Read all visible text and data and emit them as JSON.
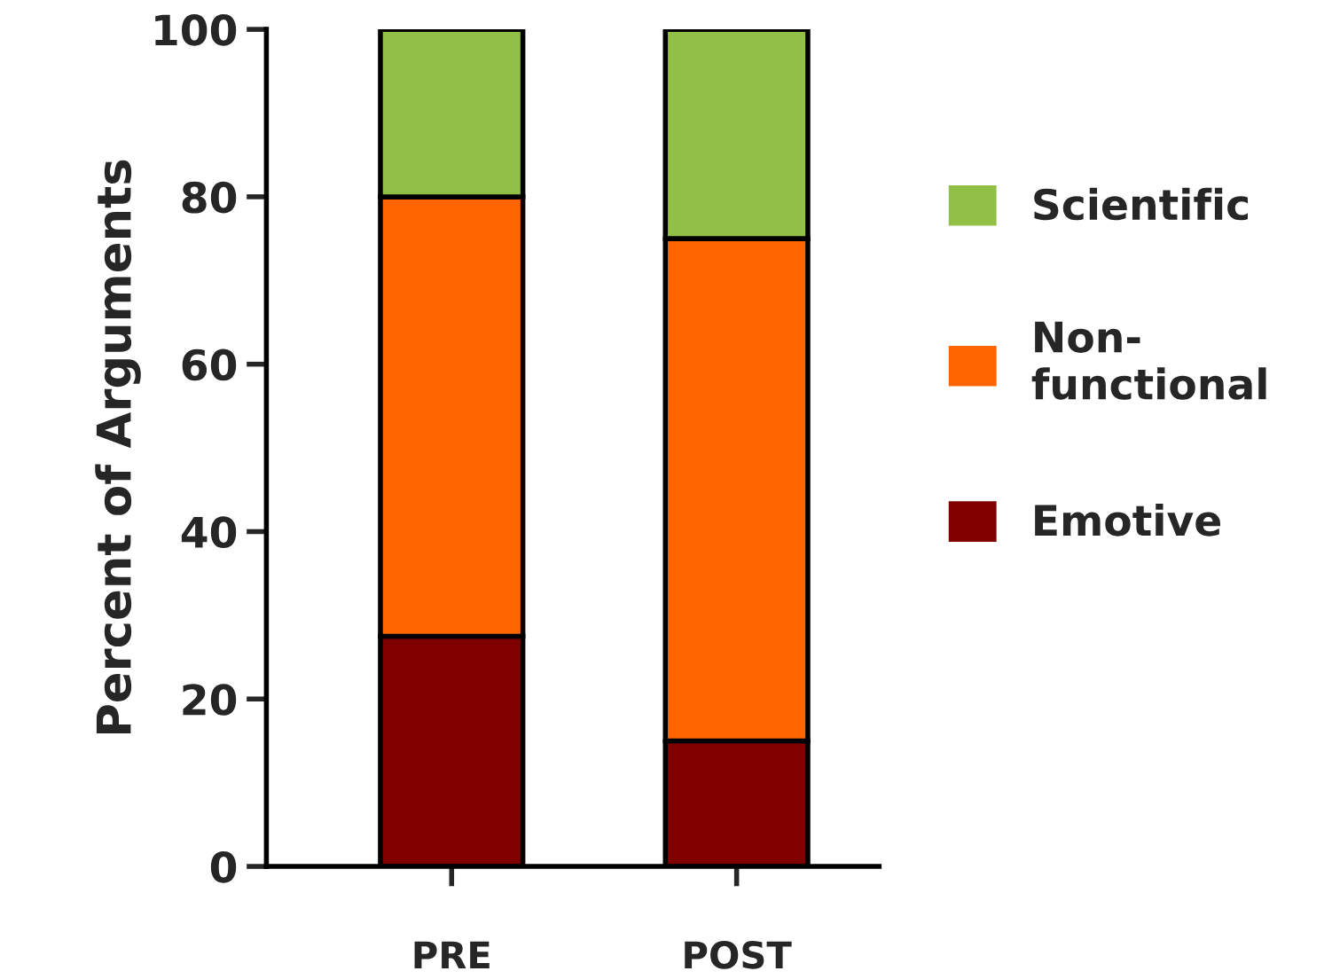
{
  "chart_data": {
    "type": "bar",
    "stacked": true,
    "ylabel": "Percent of Arguments",
    "categories": [
      "PRE",
      "POST"
    ],
    "series": [
      {
        "name": "Emotive",
        "color": "#800000",
        "values": [
          27.5,
          15
        ]
      },
      {
        "name": "Non-functional",
        "color": "#ff6600",
        "values": [
          52.5,
          60
        ]
      },
      {
        "name": "Scientific",
        "color": "#92c046",
        "values": [
          20,
          25
        ]
      }
    ],
    "ylim": [
      0,
      100
    ],
    "yticks": [
      0,
      20,
      40,
      60,
      80,
      100
    ],
    "grid": false,
    "legend": "right"
  }
}
